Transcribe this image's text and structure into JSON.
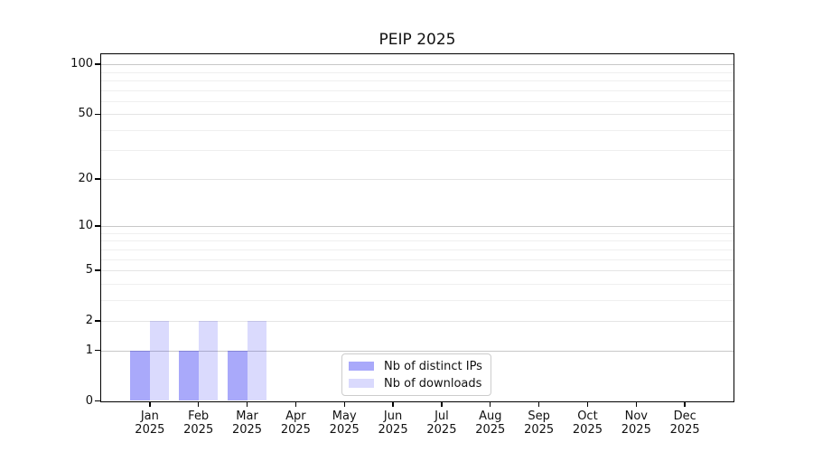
{
  "chart_data": {
    "type": "bar",
    "title": "PEIP 2025",
    "categories": [
      "Jan 2025",
      "Feb 2025",
      "Mar 2025",
      "Apr 2025",
      "May 2025",
      "Jun 2025",
      "Jul 2025",
      "Aug 2025",
      "Sep 2025",
      "Oct 2025",
      "Nov 2025",
      "Dec 2025"
    ],
    "series": [
      {
        "name": "Nb of distinct IPs",
        "color": "rgba(10,10,240,0.35)",
        "values": [
          1,
          1,
          1,
          0,
          0,
          0,
          0,
          0,
          0,
          0,
          0,
          0
        ]
      },
      {
        "name": "Nb of downloads",
        "color": "rgba(10,10,240,0.15)",
        "values": [
          2,
          2,
          2,
          0,
          0,
          0,
          0,
          0,
          0,
          0,
          0,
          0
        ]
      }
    ],
    "xlabel": "",
    "ylabel": "",
    "yscale": "log1p",
    "ylim": [
      0,
      115
    ],
    "yticks": [
      0,
      1,
      2,
      5,
      10,
      20,
      50,
      100
    ],
    "yticks_minor": [
      3,
      4,
      6,
      7,
      8,
      9,
      30,
      40,
      60,
      70,
      80,
      90
    ],
    "grid": true,
    "legend_position": "lower center"
  },
  "style": {
    "decade_grid_color": "#c8c8c8",
    "major_grid_color": "#e4e4e4",
    "minor_grid_color": "#efefef",
    "axis_color": "#000000",
    "text_color": "#111111",
    "legend_border_color": "#cccccc",
    "background": "#ffffff"
  }
}
